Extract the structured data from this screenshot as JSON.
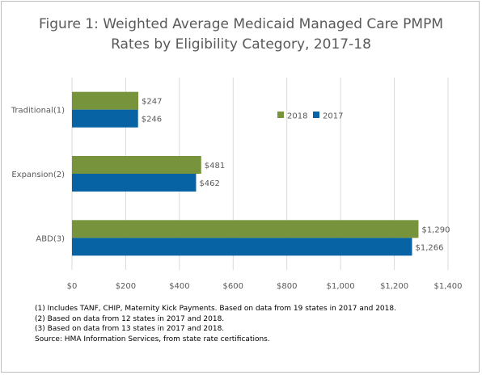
{
  "title_line1": "Figure 1: Weighted Average Medicaid Managed Care PMPM",
  "title_line2": "Rates by Eligibility Category, 2017-18",
  "colors": {
    "2018": "#77933c",
    "2017": "#0863a5",
    "grid": "#d9d9d9",
    "text": "#595959"
  },
  "chart_data": {
    "type": "bar",
    "orientation": "horizontal",
    "categories": [
      "Traditional(1)",
      "Expansion(2)",
      "ABD(3)"
    ],
    "series": [
      {
        "name": "2018",
        "values": [
          247,
          481,
          1290
        ],
        "labels": [
          "$247",
          "$481",
          "$1,290"
        ]
      },
      {
        "name": "2017",
        "values": [
          246,
          462,
          1266
        ],
        "labels": [
          "$246",
          "$462",
          "$1,266"
        ]
      }
    ],
    "xlim": [
      0,
      1400
    ],
    "x_ticks": [
      0,
      200,
      400,
      600,
      800,
      1000,
      1200,
      1400
    ],
    "x_tick_labels": [
      "$0",
      "$200",
      "$400",
      "$600",
      "$800",
      "$1,000",
      "$1,200",
      "$1,400"
    ],
    "grid": true,
    "legend_position": "inside-top-right"
  },
  "footnotes": [
    "(1) Includes TANF, CHIP, Maternity Kick Payments. Based on data from 19 states in 2017 and 2018.",
    "(2) Based on data from 12 states in 2017 and 2018.",
    "(3) Based on data from 13 states in 2017 and 2018.",
    "Source: HMA Information Services, from state rate certifications."
  ]
}
